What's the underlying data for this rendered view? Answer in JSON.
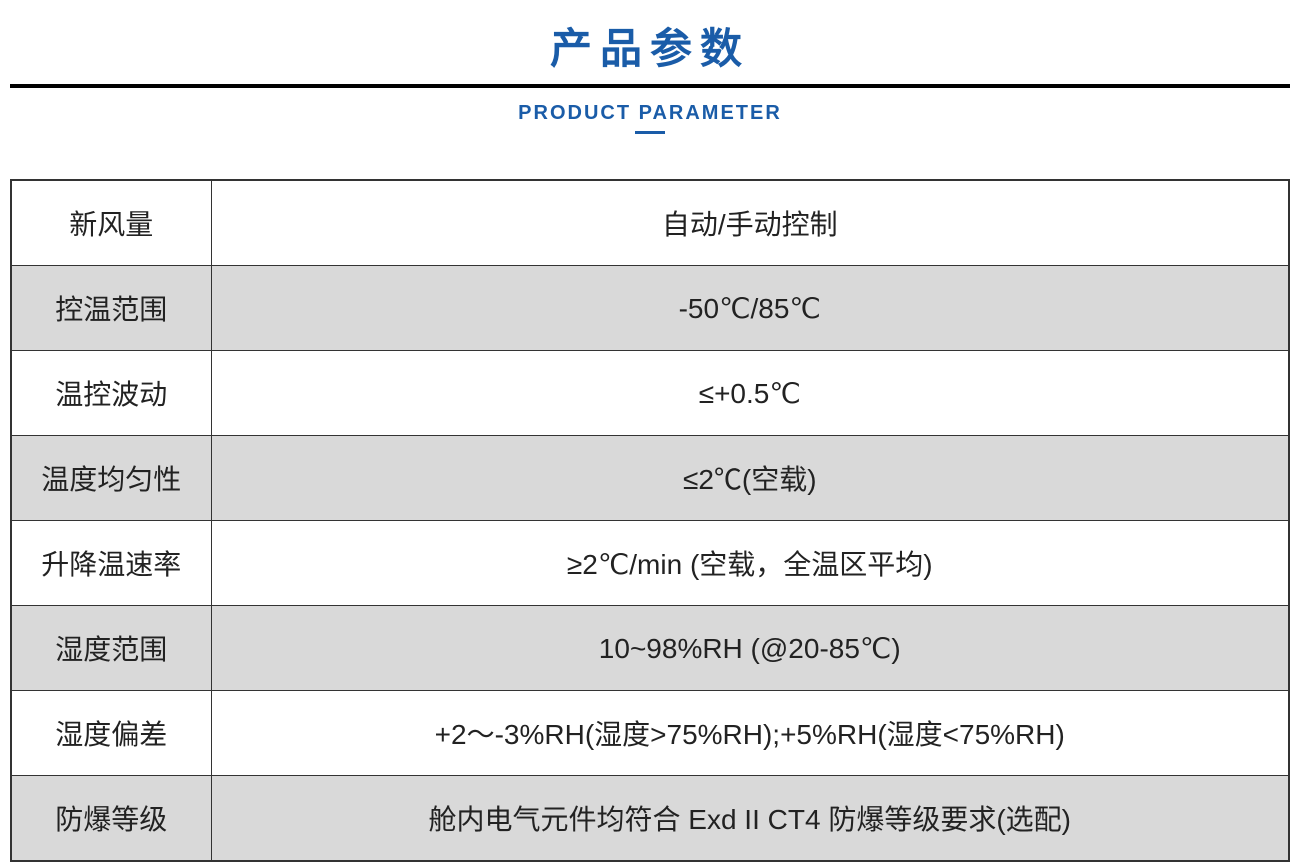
{
  "header": {
    "main_title": "产品参数",
    "subtitle": "PRODUCT PARAMETER"
  },
  "colors": {
    "title_color": "#1a5ca8",
    "divider_color": "#000000",
    "text_color": "#222222",
    "border_color": "#333333",
    "shaded_bg": "#d9d9d9",
    "white_bg": "#ffffff"
  },
  "typography": {
    "title_fontsize": 42,
    "subtitle_fontsize": 20,
    "cell_fontsize": 28
  },
  "table": {
    "label_col_width": 200,
    "rows": [
      {
        "label": "新风量",
        "value": "自动/手动控制",
        "shaded": false
      },
      {
        "label": "控温范围",
        "value": "-50℃/85℃",
        "shaded": true
      },
      {
        "label": "温控波动",
        "value": "≤+0.5℃",
        "shaded": false
      },
      {
        "label": "温度均匀性",
        "value": "≤2℃(空载)",
        "shaded": true
      },
      {
        "label": "升降温速率",
        "value": "≥2℃/min (空载，全温区平均)",
        "shaded": false
      },
      {
        "label": "湿度范围",
        "value": "10~98%RH (@20-85℃)",
        "shaded": true
      },
      {
        "label": "湿度偏差",
        "value": "+2～-3%RH(湿度>75%RH);+5%RH(湿度<75%RH)",
        "shaded": false
      },
      {
        "label": "防爆等级",
        "value": "舱内电气元件均符合 Exd II CT4 防爆等级要求(选配)",
        "shaded": true
      }
    ]
  }
}
